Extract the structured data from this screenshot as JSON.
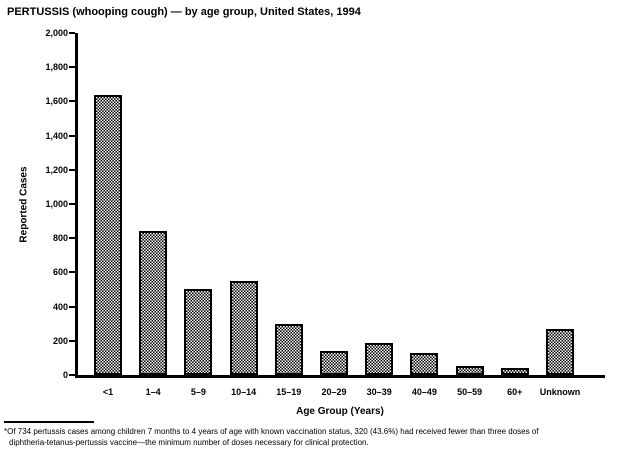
{
  "figure": {
    "footnote_line1": "*Of 734 pertussis cases among children 7 months to 4 years of age with known vaccination status, 320 (43.6%) had received fewer than three doses of",
    "footnote_line2": "diphtheria-tetanus-pertussis vaccine—the minimum number of doses necessary for clinical protection."
  },
  "chart_data": {
    "type": "bar",
    "title": "PERTUSSIS (whooping cough) — by age group, United States, 1994",
    "categories": [
      "<1",
      "1–4",
      "5–9",
      "10–14",
      "15–19",
      "20–29",
      "30–39",
      "40–49",
      "50–59",
      "60+",
      "Unknown"
    ],
    "values": [
      1640,
      840,
      500,
      550,
      300,
      140,
      190,
      130,
      50,
      40,
      270
    ],
    "xlabel": "Age Group (Years)",
    "ylabel": "Reported Cases",
    "ylim": [
      0,
      2000
    ],
    "ytick_step": 200,
    "grid": false,
    "legend": false,
    "bar_fill": "black-crosshatch-on-white",
    "axis_color": "#000000",
    "background": "#ffffff"
  }
}
